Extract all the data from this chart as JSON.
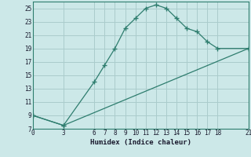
{
  "xlabel": "Humidex (Indice chaleur)",
  "bg_color": "#cce8e8",
  "line_color": "#2e7d6e",
  "grid_color": "#aacccc",
  "xlim": [
    0,
    21
  ],
  "ylim": [
    7,
    26
  ],
  "xticks": [
    0,
    3,
    6,
    7,
    8,
    9,
    10,
    11,
    12,
    13,
    14,
    15,
    16,
    17,
    18,
    21
  ],
  "yticks": [
    7,
    9,
    11,
    13,
    15,
    17,
    19,
    21,
    23,
    25
  ],
  "curve1_x": [
    0,
    3,
    6,
    7,
    8,
    9,
    10,
    11,
    12,
    13,
    14,
    15,
    16,
    17,
    18,
    21
  ],
  "curve1_y": [
    9,
    7.5,
    14,
    16.5,
    19,
    22,
    23.5,
    25,
    25.5,
    25,
    23.5,
    22,
    21.5,
    20,
    19,
    19
  ],
  "curve2_x": [
    0,
    3,
    21
  ],
  "curve2_y": [
    9,
    7.5,
    19
  ]
}
